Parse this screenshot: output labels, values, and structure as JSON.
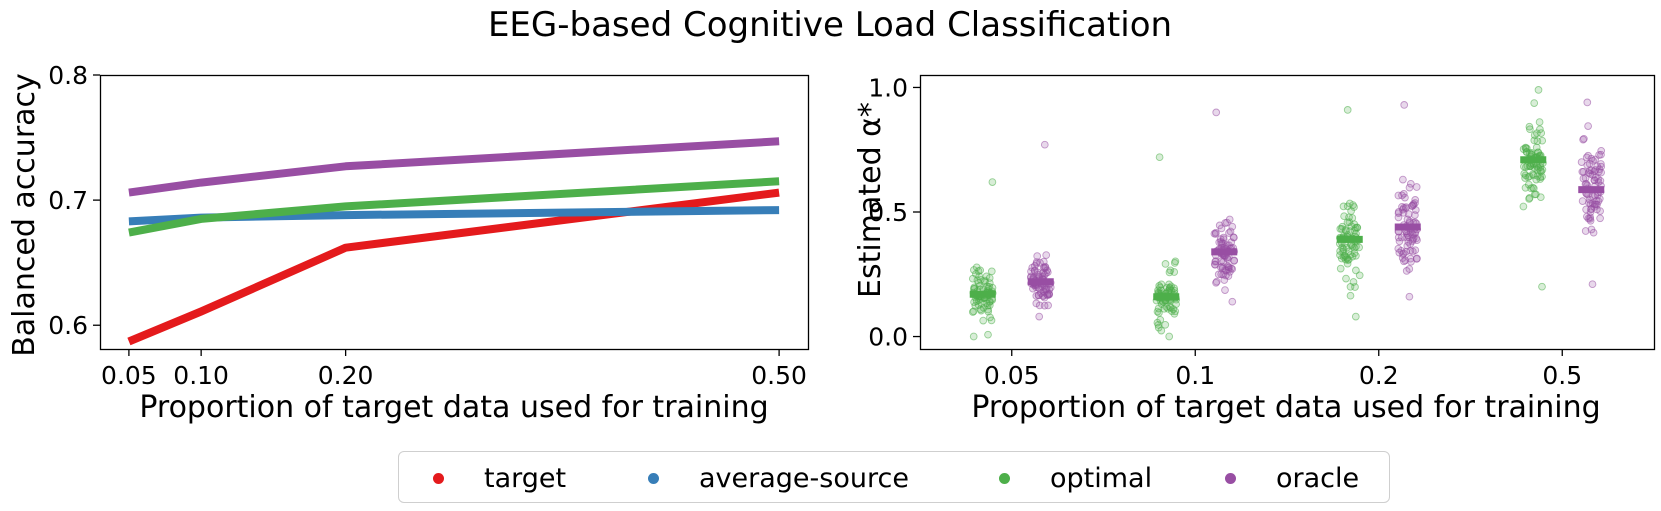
{
  "figure": {
    "title": "EEG-based Cognitive Load Classification"
  },
  "colors": {
    "target": "#e41a1c",
    "average-source": "#377eb8",
    "optimal": "#4daf4a",
    "oracle": "#984ea3"
  },
  "legend": {
    "items": [
      {
        "label": "target",
        "color": "#e41a1c"
      },
      {
        "label": "average-source",
        "color": "#377eb8"
      },
      {
        "label": "optimal",
        "color": "#4daf4a"
      },
      {
        "label": "oracle",
        "color": "#984ea3"
      }
    ]
  },
  "chart_data": [
    {
      "type": "line",
      "xlabel": "Proportion of target data used for training",
      "ylabel": "Balanced accuracy",
      "x": [
        0.05,
        0.1,
        0.2,
        0.5
      ],
      "x_tick_labels": [
        "0.05",
        "0.10",
        "0.20",
        "0.50"
      ],
      "y_ticks": [
        0.6,
        0.7,
        0.8
      ],
      "y_tick_labels": [
        "0.6",
        "0.7",
        "0.8"
      ],
      "xlim": [
        0.03,
        0.52
      ],
      "ylim": [
        0.581,
        0.8
      ],
      "grid": false,
      "series": [
        {
          "name": "target",
          "color": "#e41a1c",
          "values": [
            0.587,
            0.611,
            0.662,
            0.706
          ]
        },
        {
          "name": "average-source",
          "color": "#377eb8",
          "values": [
            0.683,
            0.686,
            0.688,
            0.692
          ]
        },
        {
          "name": "optimal",
          "color": "#4daf4a",
          "values": [
            0.674,
            0.685,
            0.695,
            0.715
          ]
        },
        {
          "name": "oracle",
          "color": "#984ea3",
          "values": [
            0.706,
            0.714,
            0.727,
            0.747
          ]
        }
      ]
    },
    {
      "type": "scatter",
      "xlabel": "Proportion of target data used for training",
      "ylabel": "Estimated α*",
      "categories": [
        "0.05",
        "0.1",
        "0.2",
        "0.5"
      ],
      "y_ticks": [
        0.0,
        0.5,
        1.0
      ],
      "y_tick_labels": [
        "0.0",
        "0.5",
        "1.0"
      ],
      "ylim": [
        -0.05,
        1.05
      ],
      "grid": false,
      "series": [
        {
          "name": "optimal",
          "color": "#4daf4a",
          "means": [
            0.17,
            0.16,
            0.39,
            0.71
          ],
          "ranges": [
            [
              0.0,
              0.62
            ],
            [
              0.0,
              0.72
            ],
            [
              0.08,
              0.91
            ],
            [
              0.2,
              0.99
            ]
          ]
        },
        {
          "name": "oracle",
          "color": "#984ea3",
          "means": [
            0.22,
            0.34,
            0.44,
            0.59
          ],
          "ranges": [
            [
              0.08,
              0.77
            ],
            [
              0.14,
              0.9
            ],
            [
              0.16,
              0.93
            ],
            [
              0.21,
              0.94
            ]
          ]
        }
      ]
    }
  ]
}
